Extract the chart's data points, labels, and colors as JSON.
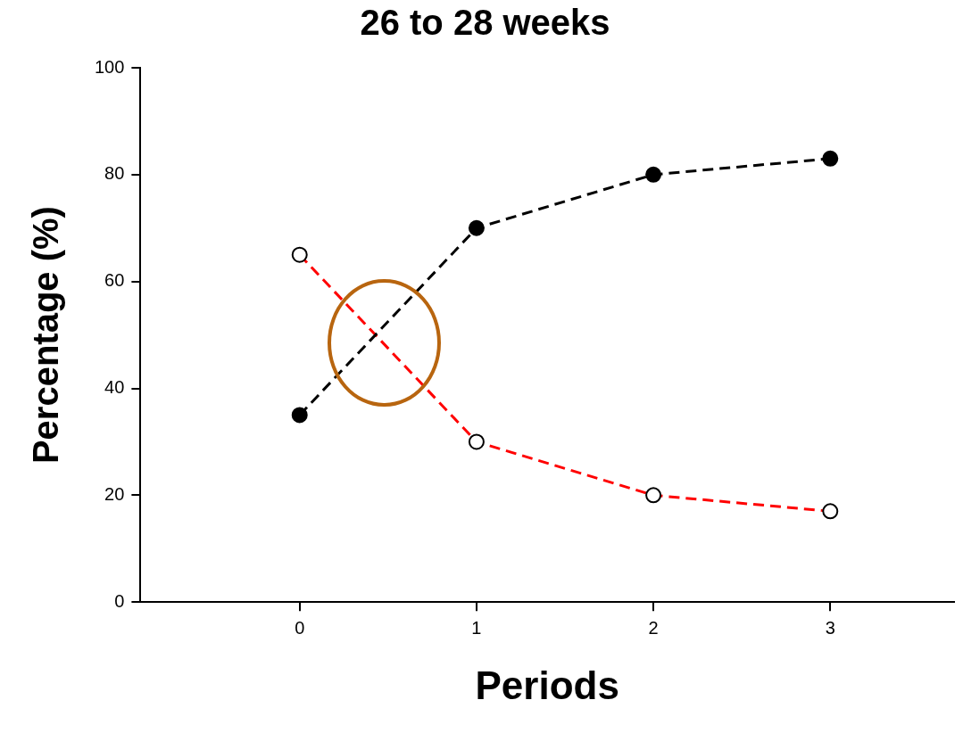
{
  "chart_data": {
    "type": "line",
    "title": "26 to 28 weeks",
    "xlabel": "Periods",
    "ylabel": "Percentage (%)",
    "x": [
      0,
      1,
      2,
      3
    ],
    "series": [
      {
        "color": "#000000",
        "values": [
          35,
          70,
          80,
          83
        ]
      },
      {
        "color": "#ff0000",
        "values": [
          65,
          30,
          20,
          17
        ]
      }
    ],
    "xlim": [
      -0.9,
      3.7
    ],
    "xticks": [
      0,
      1,
      2,
      3
    ],
    "ylim": [
      0,
      100
    ],
    "yticks": [
      0,
      20,
      40,
      60,
      80,
      100
    ],
    "grid": false,
    "legend": false,
    "marker": "circle",
    "line_style": "dashed"
  }
}
